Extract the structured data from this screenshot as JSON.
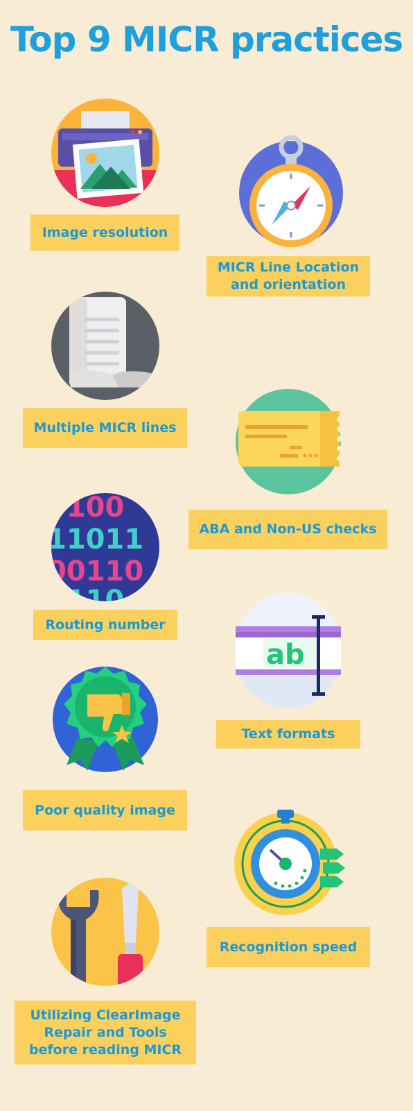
{
  "title": "Top 9 MICR practices",
  "colors": {
    "background": "#f8ecd5",
    "label_bg": "#fbd05c",
    "text_blue": "#1a99d8"
  },
  "practices": [
    {
      "label": "Image resolution",
      "icon": "printer-photo-icon"
    },
    {
      "label": "MICR Line Location and orientation",
      "icon": "compass-stopwatch-icon"
    },
    {
      "label": "Multiple MICR lines",
      "icon": "document-scroll-icon"
    },
    {
      "label": "ABA and Non-US checks",
      "icon": "check-ticket-icon"
    },
    {
      "label": "Routing number",
      "icon": "binary-code-icon"
    },
    {
      "label": "Text formats",
      "icon": "text-ab-cursor-icon"
    },
    {
      "label": "Poor quality image",
      "icon": "thumbs-down-badge-icon"
    },
    {
      "label": "Recognition speed",
      "icon": "speed-stopwatch-icon"
    },
    {
      "label": "Utilizing ClearImage Repair and Tools before reading MICR",
      "icon": "wrench-screwdriver-icon"
    }
  ]
}
